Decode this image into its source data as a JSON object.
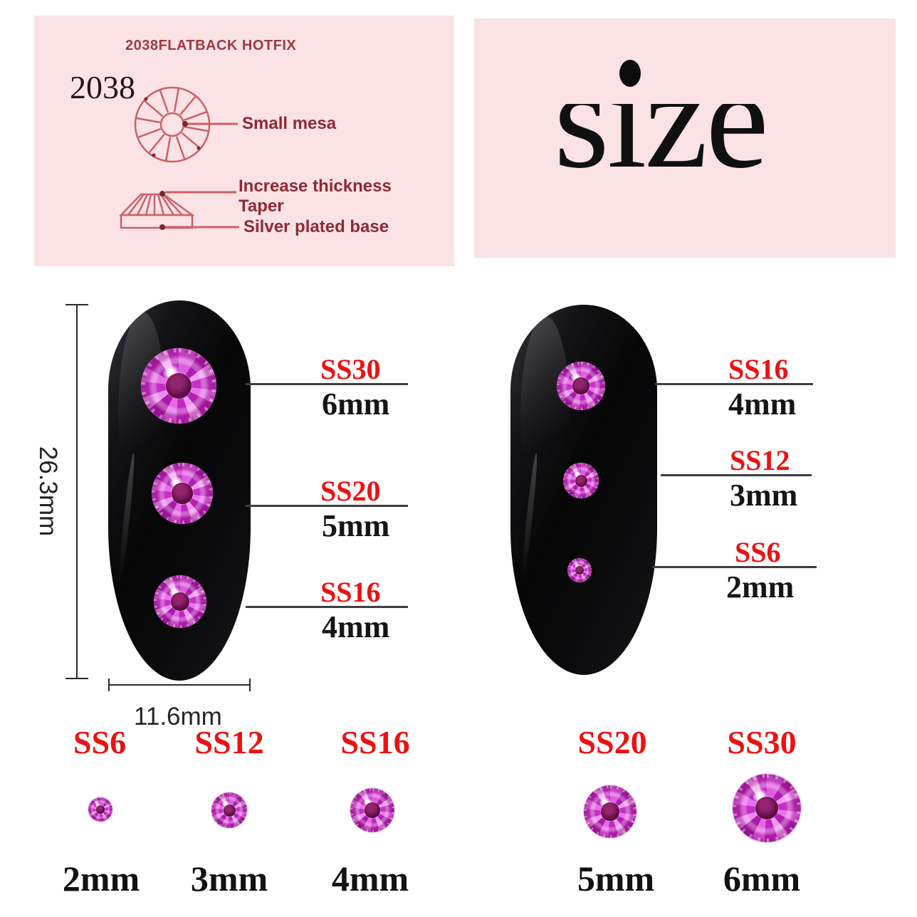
{
  "colors": {
    "panel_pink": "#fae2e5",
    "diagram_salmon": "#cb6268",
    "spec_maroon": "#8e2a34",
    "label_red": "#ed1111",
    "label_black": "#151515",
    "stone_magenta": "#c92fc9",
    "nail_black": "#0a0a0c"
  },
  "spec_panel": {
    "heading": "2038FLATBACK HOTFIX",
    "model": "2038",
    "callouts": {
      "mesa": "Small mesa",
      "thickness": "Increase thickness",
      "taper": "Taper",
      "base": "Silver plated base"
    }
  },
  "size_panel": {
    "title": "size"
  },
  "left_nail": {
    "length_label": "26.3mm",
    "width_label": "11.6mm",
    "callouts": [
      {
        "ss": "SS30",
        "mm": "6mm"
      },
      {
        "ss": "SS20",
        "mm": "5mm"
      },
      {
        "ss": "SS16",
        "mm": "4mm"
      }
    ]
  },
  "right_nail": {
    "callouts": [
      {
        "ss": "SS16",
        "mm": "4mm"
      },
      {
        "ss": "SS12",
        "mm": "3mm"
      },
      {
        "ss": "SS6",
        "mm": "2mm"
      }
    ]
  },
  "size_chart": {
    "items": [
      {
        "ss": "SS6",
        "mm": "2mm"
      },
      {
        "ss": "SS12",
        "mm": "3mm"
      },
      {
        "ss": "SS16",
        "mm": "4mm"
      },
      {
        "ss": "SS20",
        "mm": "5mm"
      },
      {
        "ss": "SS30",
        "mm": "6mm"
      }
    ]
  }
}
